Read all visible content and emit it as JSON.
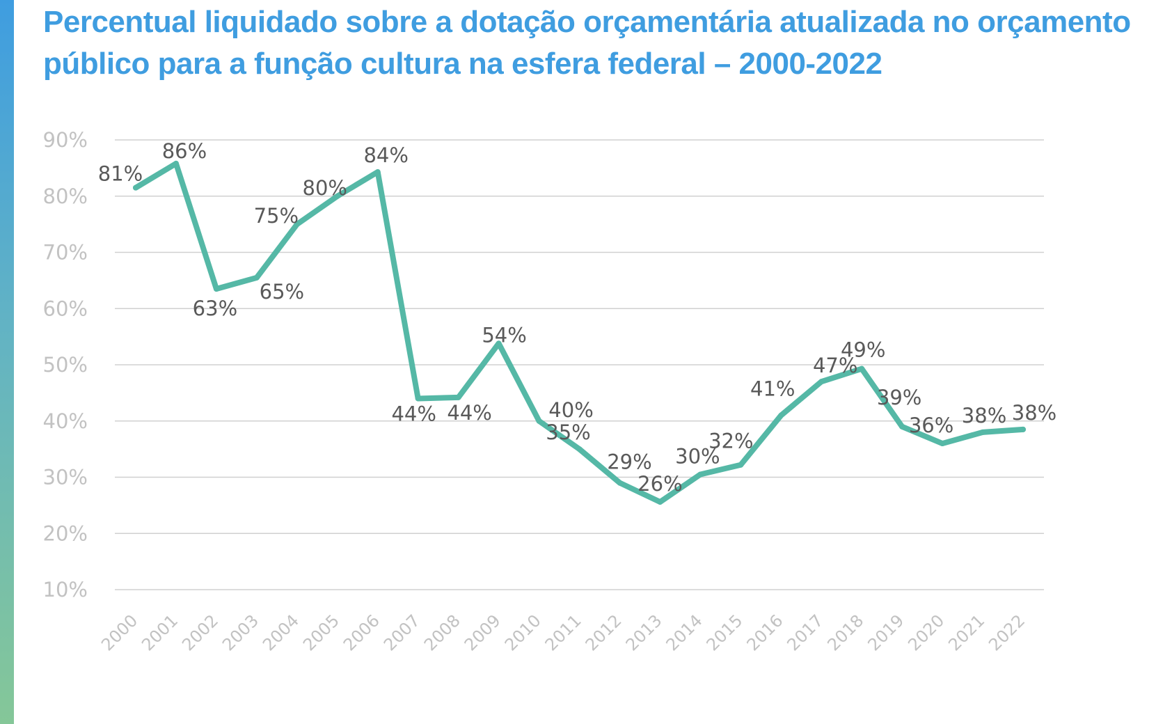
{
  "title": "Percentual liquidado sobre a dotação orçamentária atualizada no orçamento público para a função cultura na esfera federal – 2000-2022",
  "colors": {
    "accent": "#3f9de0",
    "line": "#55b8a6",
    "grid": "#d0d0d0",
    "tick": "#c2c2c2",
    "data_label": "#595959"
  },
  "chart_data": {
    "type": "line",
    "title": "Percentual liquidado sobre a dotação orçamentária atualizada no orçamento público para a função cultura na esfera federal – 2000-2022",
    "xlabel": "",
    "ylabel": "",
    "ylim": [
      10,
      90
    ],
    "y_ticks": [
      10,
      20,
      30,
      40,
      50,
      60,
      70,
      80,
      90
    ],
    "y_tick_labels": [
      "10%",
      "20%",
      "30%",
      "40%",
      "50%",
      "60%",
      "70%",
      "80%",
      "90%"
    ],
    "grid": true,
    "legend": "none",
    "categories": [
      "2000",
      "2001",
      "2002",
      "2003",
      "2004",
      "2005",
      "2006",
      "2007",
      "2008",
      "2009",
      "2010",
      "2011",
      "2012",
      "2013",
      "2014",
      "2015",
      "2016",
      "2017",
      "2018",
      "2019",
      "2020",
      "2021",
      "2022"
    ],
    "series": [
      {
        "values": [
          81.5,
          85.8,
          63.5,
          65.5,
          75,
          80,
          84.3,
          44,
          44.2,
          53.8,
          40,
          35,
          29,
          25.6,
          30.5,
          32.2,
          41,
          47,
          49.3,
          39,
          36,
          38,
          38.5
        ],
        "data_labels": [
          "81%",
          "86%",
          "63%",
          "65%",
          "75%",
          "80%",
          "84%",
          "44%",
          "44%",
          "54%",
          "40%",
          "35%",
          "29%",
          "26%",
          "30%",
          "32%",
          "41%",
          "47%",
          "49%",
          "39%",
          "36%",
          "38%",
          "38%"
        ]
      }
    ]
  }
}
